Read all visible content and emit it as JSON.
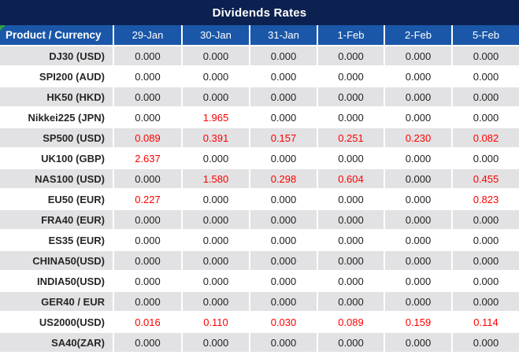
{
  "title": "Dividends Rates",
  "colors": {
    "title_bar_bg": "#0c2150",
    "header_bg": "#1a57a8",
    "header_text": "#ffffff",
    "row_alt_bg": "#e2e2e4",
    "value_text": "#1f1f1f",
    "highlight_value_text": "#fe0000",
    "corner_marker_green": "#2f9e44"
  },
  "table": {
    "product_header": "Product / Currency",
    "date_headers": [
      "29-Jan",
      "30-Jan",
      "31-Jan",
      "1-Feb",
      "2-Feb",
      "5-Feb"
    ],
    "rows": [
      {
        "product": "DJ30 (USD)",
        "values": [
          "0.000",
          "0.000",
          "0.000",
          "0.000",
          "0.000",
          "0.000"
        ],
        "red": [
          false,
          false,
          false,
          false,
          false,
          false
        ]
      },
      {
        "product": "SPI200 (AUD)",
        "values": [
          "0.000",
          "0.000",
          "0.000",
          "0.000",
          "0.000",
          "0.000"
        ],
        "red": [
          false,
          false,
          false,
          false,
          false,
          false
        ]
      },
      {
        "product": "HK50 (HKD)",
        "values": [
          "0.000",
          "0.000",
          "0.000",
          "0.000",
          "0.000",
          "0.000"
        ],
        "red": [
          false,
          false,
          false,
          false,
          false,
          false
        ]
      },
      {
        "product": "Nikkei225 (JPN)",
        "values": [
          "0.000",
          "1.965",
          "0.000",
          "0.000",
          "0.000",
          "0.000"
        ],
        "red": [
          false,
          true,
          false,
          false,
          false,
          false
        ]
      },
      {
        "product": "SP500 (USD)",
        "values": [
          "0.089",
          "0.391",
          "0.157",
          "0.251",
          "0.230",
          "0.082"
        ],
        "red": [
          true,
          true,
          true,
          true,
          true,
          true
        ]
      },
      {
        "product": "UK100 (GBP)",
        "values": [
          "2.637",
          "0.000",
          "0.000",
          "0.000",
          "0.000",
          "0.000"
        ],
        "red": [
          true,
          false,
          false,
          false,
          false,
          false
        ]
      },
      {
        "product": "NAS100 (USD)",
        "values": [
          "0.000",
          "1.580",
          "0.298",
          "0.604",
          "0.000",
          "0.455"
        ],
        "red": [
          false,
          true,
          true,
          true,
          false,
          true
        ]
      },
      {
        "product": "EU50 (EUR)",
        "values": [
          "0.227",
          "0.000",
          "0.000",
          "0.000",
          "0.000",
          "0.823"
        ],
        "red": [
          true,
          false,
          false,
          false,
          false,
          true
        ]
      },
      {
        "product": "FRA40 (EUR)",
        "values": [
          "0.000",
          "0.000",
          "0.000",
          "0.000",
          "0.000",
          "0.000"
        ],
        "red": [
          false,
          false,
          false,
          false,
          false,
          false
        ]
      },
      {
        "product": "ES35 (EUR)",
        "values": [
          "0.000",
          "0.000",
          "0.000",
          "0.000",
          "0.000",
          "0.000"
        ],
        "red": [
          false,
          false,
          false,
          false,
          false,
          false
        ]
      },
      {
        "product": "CHINA50(USD)",
        "values": [
          "0.000",
          "0.000",
          "0.000",
          "0.000",
          "0.000",
          "0.000"
        ],
        "red": [
          false,
          false,
          false,
          false,
          false,
          false
        ]
      },
      {
        "product": "INDIA50(USD)",
        "values": [
          "0.000",
          "0.000",
          "0.000",
          "0.000",
          "0.000",
          "0.000"
        ],
        "red": [
          false,
          false,
          false,
          false,
          false,
          false
        ]
      },
      {
        "product": "GER40 / EUR",
        "values": [
          "0.000",
          "0.000",
          "0.000",
          "0.000",
          "0.000",
          "0.000"
        ],
        "red": [
          false,
          false,
          false,
          false,
          false,
          false
        ]
      },
      {
        "product": "US2000(USD)",
        "values": [
          "0.016",
          "0.110",
          "0.030",
          "0.089",
          "0.159",
          "0.114"
        ],
        "red": [
          true,
          true,
          true,
          true,
          true,
          true
        ]
      },
      {
        "product": "SA40(ZAR)",
        "values": [
          "0.000",
          "0.000",
          "0.000",
          "0.000",
          "0.000",
          "0.000"
        ],
        "red": [
          false,
          false,
          false,
          false,
          false,
          false
        ]
      }
    ]
  }
}
